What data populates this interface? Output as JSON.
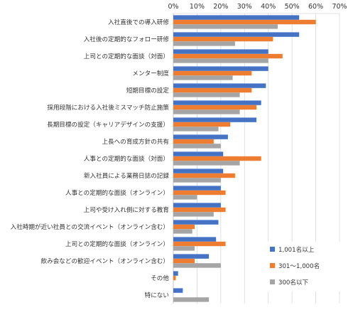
{
  "chart_data": {
    "type": "bar",
    "orientation": "horizontal",
    "categories": [
      "入社直後での導入研修",
      "入社後の定期的なフォロー研修",
      "上司との定期的な面談（対面）",
      "メンター制度",
      "短期目標の設定",
      "採用段階における入社後ミスマッチ防止施策",
      "長期目標の設定（キャリアデザインの支援）",
      "上長への育成方針の共有",
      "人事との定期的な面談（対面）",
      "新入社員による業務日誌の記録",
      "人事との定期的な面談（オンライン）",
      "上司や受け入れ側に対する教育",
      "入社時期が近い社員との交流イベント（オンライン含む）",
      "上司との定期的な面談（オンライン）",
      "飲み会などの歓迎イベント（オンライン含む）",
      "その他",
      "特にない"
    ],
    "series": [
      {
        "name": "1,001名以上",
        "color": "#4472C4",
        "values": [
          53,
          53,
          40,
          40,
          39,
          37,
          35,
          23,
          21,
          21,
          20,
          20,
          19,
          18,
          15,
          2,
          4
        ]
      },
      {
        "name": "301～1,000名",
        "color": "#ED7D31",
        "values": [
          60,
          42,
          46,
          33,
          33,
          35,
          24,
          17,
          37,
          26,
          22,
          22,
          9,
          22,
          9,
          1,
          0
        ]
      },
      {
        "name": "300名以下",
        "color": "#A5A5A5",
        "values": [
          44,
          26,
          40,
          25,
          28,
          28,
          19,
          20,
          28,
          20,
          10,
          17,
          8,
          9,
          20,
          0,
          15
        ]
      }
    ],
    "x_ticks": [
      "0%",
      "10%",
      "20%",
      "30%",
      "40%",
      "50%",
      "60%",
      "70%"
    ],
    "xlim": [
      0,
      70
    ],
    "x_axis_position": "top",
    "grid": true,
    "legend_position": "bottom-right"
  }
}
